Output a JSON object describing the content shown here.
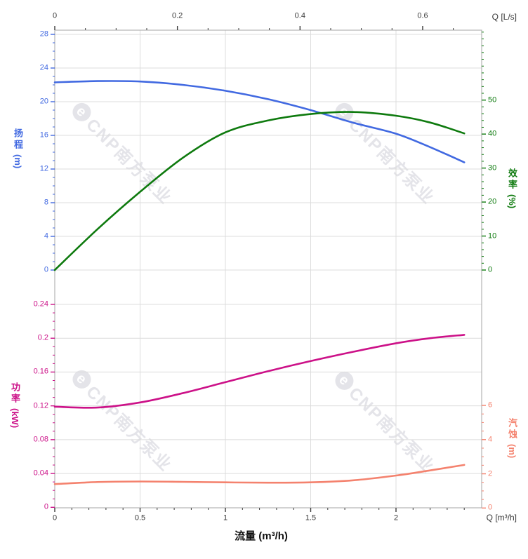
{
  "watermark": {
    "logo_glyph": "e",
    "text": "CNP南方泵业"
  },
  "colors": {
    "head": "#4169E1",
    "efficiency": "#0E7A0E",
    "power": "#CC1188",
    "npsh": "#F4826E",
    "axis_text": "#3a3a3a",
    "grid": "#DCDCDC",
    "frame": "#B3B3B3",
    "watermark": "#E4E4E9"
  },
  "axis_titles": {
    "head": {
      "label": "扬程",
      "unit": "(m)"
    },
    "efficiency": {
      "label": "效率",
      "unit": "(%)"
    },
    "power": {
      "label": "功率",
      "unit": "(kW)"
    },
    "npsh": {
      "label": "汽蚀",
      "unit": "(m)"
    }
  },
  "top_axis": {
    "title": "Q [L/s]",
    "values": [
      0,
      0.2,
      0.4,
      0.6
    ],
    "minor_step": 0.05,
    "minor_extent": 0.695
  },
  "bottom_axis": {
    "title": "Q [m³/h]",
    "xlabel": "流量 (m³/h)",
    "values": [
      0,
      0.5,
      1,
      1.5,
      2
    ],
    "minor_step": 0.1,
    "minor_extent": 2.45,
    "x_max": 2.49
  },
  "chart_data": [
    {
      "type": "line",
      "title": "Head and efficiency vs flow",
      "x_unit": "m³/h",
      "x": [
        0,
        0.25,
        0.5,
        0.75,
        1,
        1.25,
        1.5,
        1.75,
        2,
        2.2,
        2.4
      ],
      "series": [
        {
          "key": "head",
          "name": "扬程",
          "unit": "m",
          "axis": "left",
          "values": [
            22.3,
            22.45,
            22.4,
            22.0,
            21.3,
            20.3,
            19.0,
            17.5,
            16.2,
            14.6,
            12.8
          ],
          "ylim": [
            0,
            28
          ],
          "major_ticks": [
            0,
            4,
            8,
            12,
            16,
            20,
            24,
            28
          ],
          "minor_step": 1,
          "minor_extent": 27
        },
        {
          "key": "efficiency",
          "name": "效率",
          "unit": "%",
          "axis": "right",
          "values": [
            0,
            12,
            23,
            33,
            40.5,
            44,
            45.9,
            46.5,
            45.4,
            43.4,
            40.2
          ],
          "ylim": [
            0,
            50
          ],
          "major_ticks": [
            0,
            10,
            20,
            30,
            40,
            50
          ],
          "minor_step": 2,
          "minor_extent": 70
        }
      ],
      "grid": true,
      "legend": "none"
    },
    {
      "type": "line",
      "title": "Power and NPSH vs flow",
      "x_unit": "m³/h",
      "x": [
        0,
        0.25,
        0.5,
        0.75,
        1,
        1.25,
        1.5,
        1.75,
        2,
        2.2,
        2.4
      ],
      "series": [
        {
          "key": "power",
          "name": "功率",
          "unit": "kW",
          "axis": "left",
          "values": [
            0.119,
            0.118,
            0.124,
            0.135,
            0.148,
            0.161,
            0.173,
            0.184,
            0.194,
            0.2,
            0.204
          ],
          "ylim": [
            0,
            0.24
          ],
          "major_ticks": [
            0,
            0.04,
            0.08,
            0.12,
            0.16,
            0.2,
            0.24
          ],
          "minor_step": 0.01,
          "minor_extent": 0.23
        },
        {
          "key": "npsh",
          "name": "汽蚀",
          "unit": "m",
          "axis": "right",
          "values": [
            1.4,
            1.52,
            1.55,
            1.53,
            1.5,
            1.48,
            1.5,
            1.62,
            1.9,
            2.2,
            2.52
          ],
          "ylim": [
            0,
            6
          ],
          "major_ticks": [
            0,
            2,
            4,
            6
          ],
          "minor_step": 0.5,
          "minor_extent": 5.5
        }
      ],
      "grid": true,
      "legend": "none"
    }
  ]
}
